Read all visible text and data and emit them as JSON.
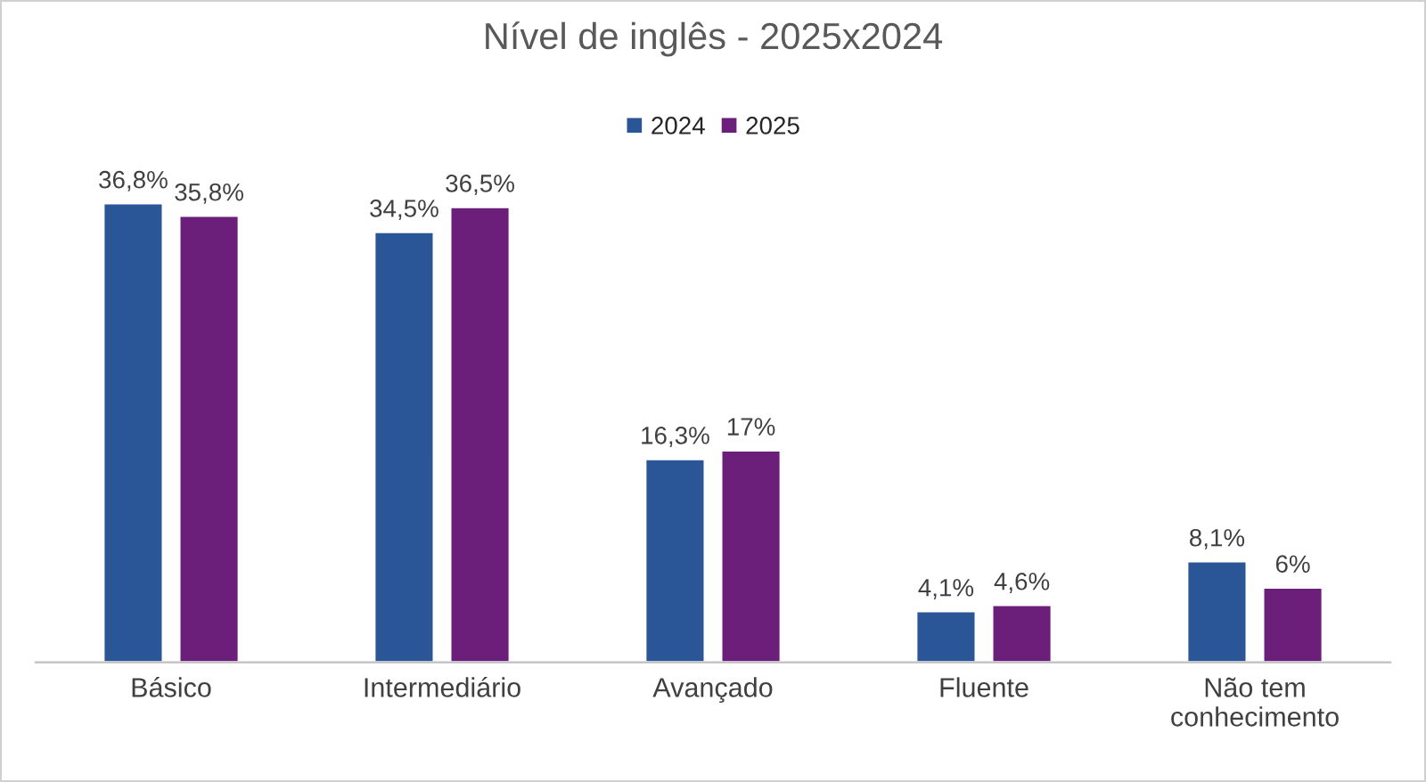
{
  "chart_data": {
    "type": "bar",
    "title": "Nível de inglês - 2025x2024",
    "categories": [
      "Básico",
      "Intermediário",
      "Avançado",
      "Fluente",
      "Não tem\nconhecimento"
    ],
    "series": [
      {
        "name": "2024",
        "color": "#2a5597",
        "values": [
          36.8,
          34.5,
          16.3,
          4.1,
          8.1
        ],
        "value_labels": [
          "36,8%",
          "34,5%",
          "16,3%",
          "4,1%",
          "8,1%"
        ]
      },
      {
        "name": "2025",
        "color": "#6c1f7a",
        "values": [
          35.8,
          36.5,
          17,
          4.6,
          6
        ],
        "value_labels": [
          "35,8%",
          "36,5%",
          "17%",
          "4,6%",
          "6%"
        ]
      }
    ],
    "legend": "top",
    "grid": false,
    "tick_labels": "x"
  }
}
